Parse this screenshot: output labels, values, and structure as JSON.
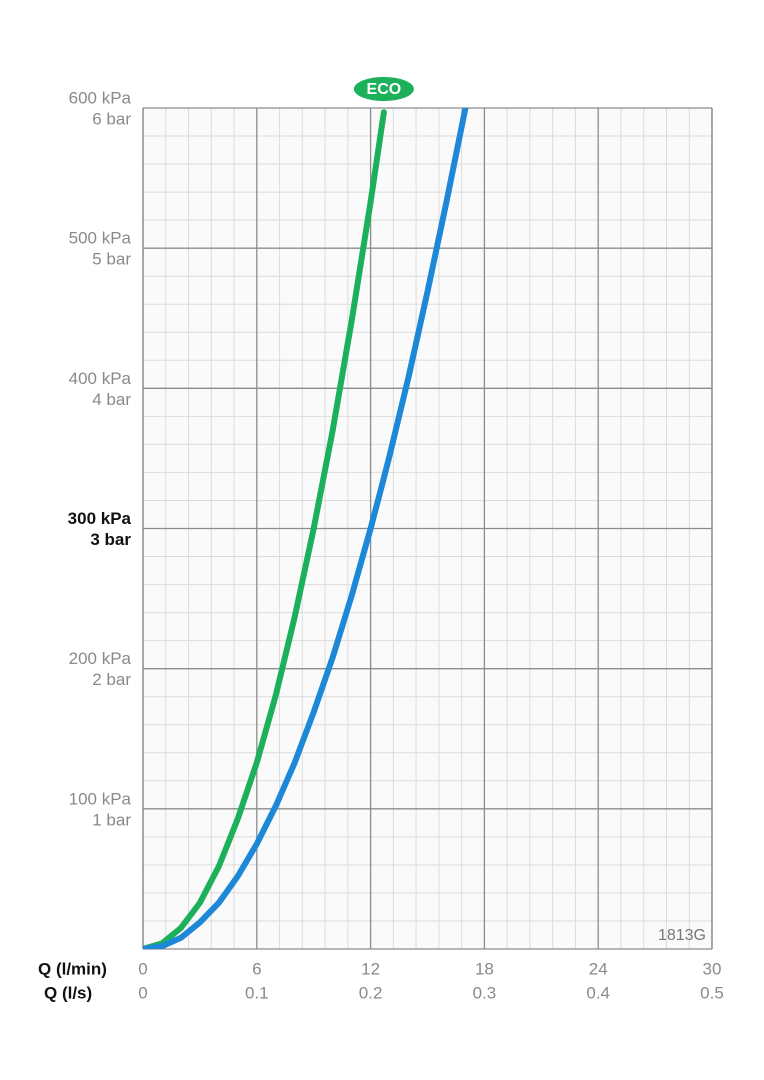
{
  "chart_data": {
    "type": "line",
    "x_label": "Q (l/min)",
    "x2_label": "Q (l/s)",
    "xlim": [
      0,
      30
    ],
    "xticks": [
      0,
      6,
      12,
      18,
      24,
      30
    ],
    "x2lim": [
      0,
      0.5
    ],
    "x2ticks": [
      0,
      0.1,
      0.2,
      0.3,
      0.4,
      0.5
    ],
    "ylim": [
      0,
      600
    ],
    "yticks": [
      {
        "value": 100,
        "label": "100 kPa"
      },
      {
        "value": 200,
        "label": "200 kPa"
      },
      {
        "value": 300,
        "label": "300 kPa",
        "bold": true
      },
      {
        "value": 400,
        "label": "400 kPa"
      },
      {
        "value": 500,
        "label": "500 kPa"
      },
      {
        "value": 600,
        "label": "600 kPa"
      }
    ],
    "ytick_bar_labels": [
      "1 bar",
      "2 bar",
      "3 bar",
      "4 bar",
      "5 bar",
      "6 bar"
    ],
    "grid": true,
    "minor_grid_divisions": 5,
    "code": "1813G",
    "x": [
      0,
      1,
      2,
      3,
      4,
      5,
      6,
      7,
      8,
      9,
      10,
      11,
      12,
      12.7,
      13,
      14,
      15,
      16,
      17
    ],
    "series": [
      {
        "name": "ECO",
        "color": "#1db05a",
        "values": [
          0,
          4,
          15,
          33,
          59,
          93,
          133,
          181,
          237,
          300,
          370,
          448,
          533,
          597,
          null,
          null,
          null,
          null,
          null
        ]
      },
      {
        "color": "#1e88d8",
        "values": [
          0,
          2,
          8,
          19,
          33,
          52,
          75,
          102,
          133,
          169,
          208,
          252,
          300,
          336,
          352,
          408,
          469,
          533,
          600
        ]
      }
    ]
  }
}
